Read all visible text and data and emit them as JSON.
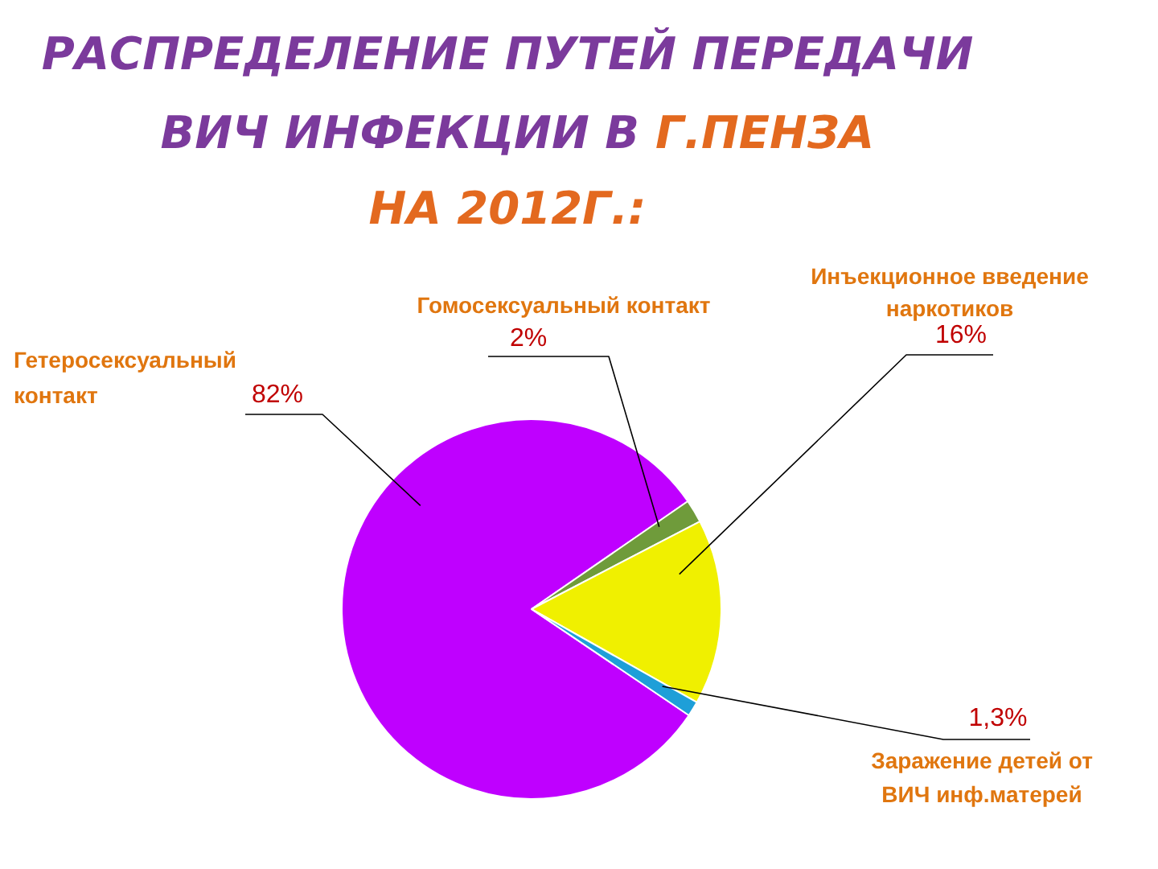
{
  "chart_data": {
    "type": "pie",
    "title": "РАСПРЕДЕЛЕНИЕ ПУТЕЙ ПЕРЕДАЧИ ВИЧ ИНФЕКЦИИ В Г.ПЕНЗА НА 2012Г.:",
    "categories": [
      "Гетеросексуальный контакт",
      "Гомосексуальный контакт",
      "Инъекционное введение наркотиков",
      "Заражение детей от ВИЧ инф.матерей"
    ],
    "values": [
      82,
      2,
      16,
      1.3
    ],
    "value_labels": [
      "82%",
      "2%",
      "16%",
      "1,3%"
    ],
    "colors": [
      "#bf00ff",
      "#6f9b3b",
      "#f0f000",
      "#1e9fd8"
    ]
  }
}
